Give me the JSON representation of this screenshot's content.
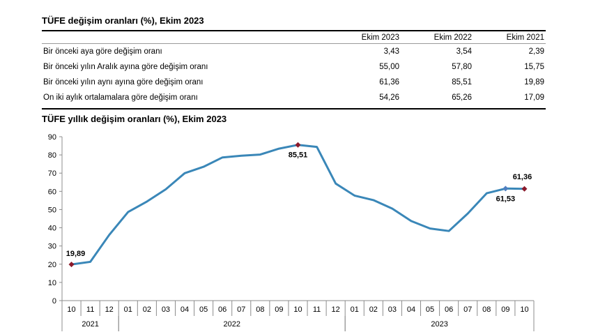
{
  "table": {
    "title": "TÜFE değişim oranları (%), Ekim 2023",
    "columns": [
      "Ekim 2023",
      "Ekim 2022",
      "Ekim 2021"
    ],
    "rows": [
      {
        "label": "Bir önceki aya göre değişim oranı",
        "values": [
          "3,43",
          "3,54",
          "2,39"
        ]
      },
      {
        "label": "Bir önceki yılın Aralık ayına göre değişim oranı",
        "values": [
          "55,00",
          "57,80",
          "15,75"
        ]
      },
      {
        "label": "Bir önceki yılın aynı ayına göre değişim oranı",
        "values": [
          "61,36",
          "85,51",
          "19,89"
        ]
      },
      {
        "label": "On iki aylık ortalamalara göre değişim oranı",
        "values": [
          "54,26",
          "65,26",
          "17,09"
        ]
      }
    ]
  },
  "chart_data": {
    "type": "line",
    "title": "TÜFE yıllık değişim oranları (%), Ekim 2023",
    "xlabel": "",
    "ylabel": "",
    "ylim": [
      0,
      90
    ],
    "yticks": [
      0,
      10,
      20,
      30,
      40,
      50,
      60,
      70,
      80,
      90
    ],
    "categories": [
      "10",
      "11",
      "12",
      "01",
      "02",
      "03",
      "04",
      "05",
      "06",
      "07",
      "08",
      "09",
      "10",
      "11",
      "12",
      "01",
      "02",
      "03",
      "04",
      "05",
      "06",
      "07",
      "08",
      "09",
      "10"
    ],
    "year_groups": [
      {
        "label": "2021",
        "start": 0,
        "end": 2
      },
      {
        "label": "2022",
        "start": 3,
        "end": 14
      },
      {
        "label": "2023",
        "start": 15,
        "end": 24
      }
    ],
    "series": [
      {
        "name": "TÜFE yıllık değişim",
        "color": "#3a87b8",
        "values": [
          19.89,
          21.31,
          36.08,
          48.69,
          54.44,
          61.14,
          69.97,
          73.5,
          78.62,
          79.6,
          80.21,
          83.45,
          85.51,
          84.39,
          64.27,
          57.68,
          55.18,
          50.51,
          43.68,
          39.59,
          38.21,
          47.83,
          58.94,
          61.53,
          61.36
        ]
      }
    ],
    "annotations": [
      {
        "index": 0,
        "text": "19,89",
        "marker": "red"
      },
      {
        "index": 12,
        "text": "85,51",
        "marker": "red"
      },
      {
        "index": 23,
        "text": "61,53",
        "marker": "blue"
      },
      {
        "index": 24,
        "text": "61,36",
        "marker": "red"
      }
    ],
    "marker_colors": {
      "red": "#8b1a2b",
      "blue": "#4f7fc0"
    }
  }
}
